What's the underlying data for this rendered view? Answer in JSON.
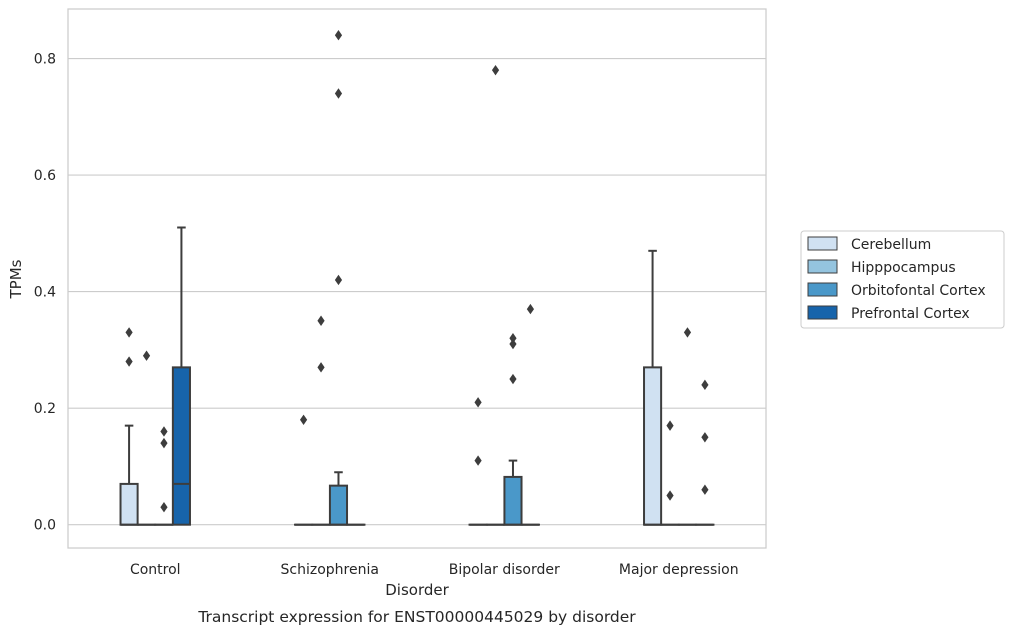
{
  "chart_data": {
    "type": "box",
    "caption": "Transcript expression for ENST00000445029 by disorder",
    "xlabel": "Disorder",
    "ylabel": "TPMs",
    "ylim": [
      -0.04,
      0.885
    ],
    "yticks": [
      0.0,
      0.2,
      0.4,
      0.6,
      0.8
    ],
    "ytick_labels": [
      "0.0",
      "0.2",
      "0.4",
      "0.6",
      "0.8"
    ],
    "grid": "horizontal",
    "legend_position": "right",
    "categories": [
      "Control",
      "Schizophrenia",
      "Bipolar disorder",
      "Major depression"
    ],
    "series": [
      {
        "name": "Cerebellum",
        "color": "#d0e1f2",
        "boxes": [
          {
            "q1": 0,
            "median": 0,
            "q3": 0.07,
            "whisker_low": 0,
            "whisker_high": 0.17,
            "outliers": [
              0.28,
              0.33
            ]
          },
          {
            "q1": 0,
            "median": 0,
            "q3": 0,
            "whisker_low": 0,
            "whisker_high": 0,
            "outliers": [
              0.18
            ]
          },
          {
            "q1": 0,
            "median": 0,
            "q3": 0,
            "whisker_low": 0,
            "whisker_high": 0,
            "outliers": [
              0.11,
              0.21
            ]
          },
          {
            "q1": 0,
            "median": 0,
            "q3": 0.27,
            "whisker_low": 0,
            "whisker_high": 0.47,
            "outliers": []
          }
        ]
      },
      {
        "name": "Hipppocampus",
        "color": "#94c4df",
        "boxes": [
          {
            "q1": 0,
            "median": 0,
            "q3": 0,
            "whisker_low": 0,
            "whisker_high": 0,
            "outliers": [
              0.29
            ]
          },
          {
            "q1": 0,
            "median": 0,
            "q3": 0,
            "whisker_low": 0,
            "whisker_high": 0,
            "outliers": [
              0.27,
              0.35
            ]
          },
          {
            "q1": 0,
            "median": 0,
            "q3": 0,
            "whisker_low": 0,
            "whisker_high": 0,
            "outliers": [
              0.78
            ]
          },
          {
            "q1": 0,
            "median": 0,
            "q3": 0,
            "whisker_low": 0,
            "whisker_high": 0,
            "outliers": [
              0.05,
              0.17
            ]
          }
        ]
      },
      {
        "name": "Orbitofontal Cortex",
        "color": "#4a98c9",
        "boxes": [
          {
            "q1": 0,
            "median": 0,
            "q3": 0,
            "whisker_low": 0,
            "whisker_high": 0,
            "outliers": [
              0.03,
              0.14,
              0.16
            ]
          },
          {
            "q1": 0,
            "median": 0,
            "q3": 0.067,
            "whisker_low": 0,
            "whisker_high": 0.09,
            "outliers": [
              0.42,
              0.74,
              0.84
            ]
          },
          {
            "q1": 0,
            "median": 0,
            "q3": 0.082,
            "whisker_low": 0,
            "whisker_high": 0.11,
            "outliers": [
              0.25,
              0.31,
              0.32
            ]
          },
          {
            "q1": 0,
            "median": 0,
            "q3": 0,
            "whisker_low": 0,
            "whisker_high": 0,
            "outliers": [
              0.33
            ]
          }
        ]
      },
      {
        "name": "Prefrontal Cortex",
        "color": "#1764ab",
        "boxes": [
          {
            "q1": 0,
            "median": 0.07,
            "q3": 0.27,
            "whisker_low": 0,
            "whisker_high": 0.51,
            "outliers": []
          },
          {
            "q1": 0,
            "median": 0,
            "q3": 0,
            "whisker_low": 0,
            "whisker_high": 0,
            "outliers": []
          },
          {
            "q1": 0,
            "median": 0,
            "q3": 0,
            "whisker_low": 0,
            "whisker_high": 0,
            "outliers": [
              0.37
            ]
          },
          {
            "q1": 0,
            "median": 0,
            "q3": 0,
            "whisker_low": 0,
            "whisker_high": 0,
            "outliers": [
              0.06,
              0.15,
              0.24
            ]
          }
        ]
      }
    ]
  }
}
